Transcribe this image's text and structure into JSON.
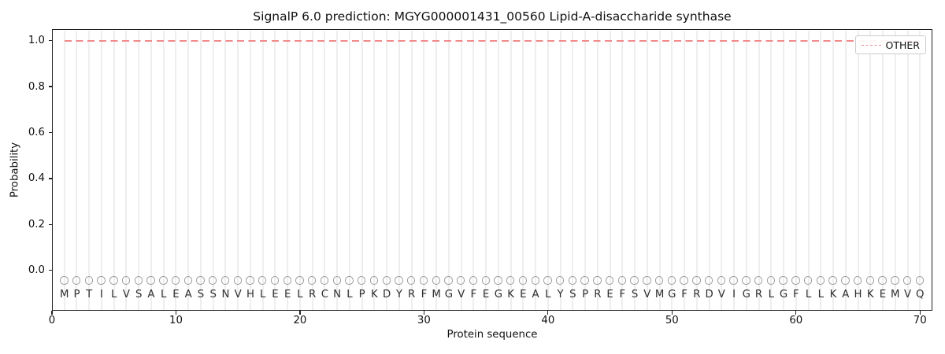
{
  "title": "SignalP 6.0 prediction: MGYG000001431_00560 Lipid-A-disaccharide synthase",
  "legend": {
    "items": [
      {
        "label": "OTHER",
        "color": "#f28a8a",
        "linestyle": "dashed"
      }
    ]
  },
  "colors": {
    "prediction_line": "#f28a8a",
    "residue_marker": "#9c9c9c",
    "gridline": "#eeeeee",
    "spine": "#222222"
  },
  "chart_data": {
    "type": "line",
    "title": "SignalP 6.0 prediction: MGYG000001431_00560 Lipid-A-disaccharide synthase",
    "xlabel": "Protein sequence",
    "ylabel": "Probability",
    "xlim": [
      0,
      71
    ],
    "ylim": [
      -0.175,
      1.05
    ],
    "xticks": [
      0,
      10,
      20,
      30,
      40,
      50,
      60,
      70
    ],
    "xtick_labels": [
      "0",
      "10",
      "20",
      "30",
      "40",
      "50",
      "60",
      "70"
    ],
    "yticks": [
      0.0,
      0.2,
      0.4,
      0.6,
      0.8,
      1.0
    ],
    "ytick_labels": [
      "0.0",
      "0.2",
      "0.4",
      "0.6",
      "0.8",
      "1.0"
    ],
    "grid": "vertical-line-per-residue",
    "legend_position": "upper-right",
    "x": [
      1,
      2,
      3,
      4,
      5,
      6,
      7,
      8,
      9,
      10,
      11,
      12,
      13,
      14,
      15,
      16,
      17,
      18,
      19,
      20,
      21,
      22,
      23,
      24,
      25,
      26,
      27,
      28,
      29,
      30,
      31,
      32,
      33,
      34,
      35,
      36,
      37,
      38,
      39,
      40,
      41,
      42,
      43,
      44,
      45,
      46,
      47,
      48,
      49,
      50,
      51,
      52,
      53,
      54,
      55,
      56,
      57,
      58,
      59,
      60,
      61,
      62,
      63,
      64,
      65,
      66,
      67,
      68,
      69,
      70
    ],
    "series": [
      {
        "name": "OTHER",
        "color": "#f28a8a",
        "linestyle": "dashed",
        "values": [
          1.0,
          1.0,
          1.0,
          1.0,
          1.0,
          1.0,
          1.0,
          1.0,
          1.0,
          1.0,
          1.0,
          1.0,
          1.0,
          1.0,
          1.0,
          1.0,
          1.0,
          1.0,
          1.0,
          1.0,
          1.0,
          1.0,
          1.0,
          1.0,
          1.0,
          1.0,
          1.0,
          1.0,
          1.0,
          1.0,
          1.0,
          1.0,
          1.0,
          1.0,
          1.0,
          1.0,
          1.0,
          1.0,
          1.0,
          1.0,
          1.0,
          1.0,
          1.0,
          1.0,
          1.0,
          1.0,
          1.0,
          1.0,
          1.0,
          1.0,
          1.0,
          1.0,
          1.0,
          1.0,
          1.0,
          1.0,
          1.0,
          1.0,
          1.0,
          1.0,
          1.0,
          1.0,
          1.0,
          1.0,
          1.0,
          1.0,
          1.0,
          1.0,
          1.0,
          1.0
        ]
      }
    ],
    "sequence": "MPTILVSALEASSNVHLEELRCNLPKDYRFMGVFEGKEALYSPREFSVMGFRDVIGRLGFLLKAHKEMVQ",
    "residue_marker": {
      "shape": "circle",
      "y": -0.045,
      "color": "#9c9c9c"
    }
  }
}
